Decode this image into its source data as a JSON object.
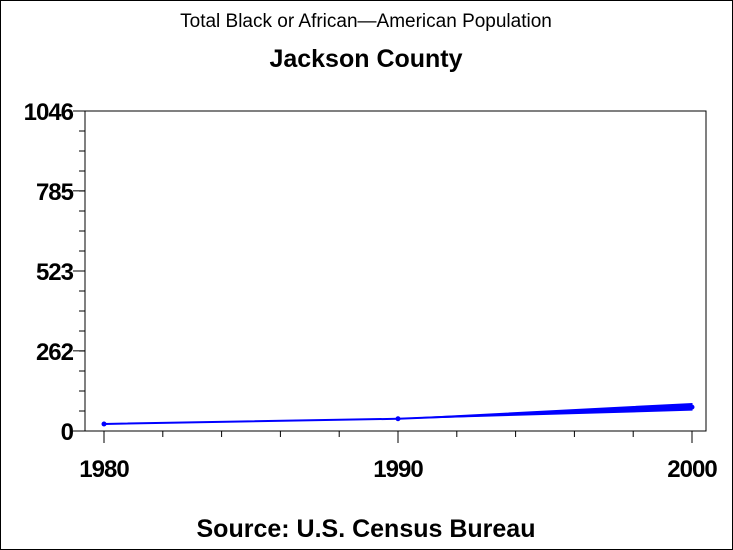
{
  "chart_data": {
    "type": "line",
    "title": "Total Black or African—American Population",
    "subtitle": "Jackson County",
    "source": "Source: U.S. Census Bureau",
    "xlim": [
      1980,
      2000
    ],
    "ylim": [
      0,
      1046
    ],
    "x_ticks": [
      1980,
      1990,
      2000
    ],
    "y_ticks": [
      0,
      262,
      523,
      785,
      1046
    ],
    "x_minor_step": 2,
    "y_minor_step": 65.375,
    "grid": false,
    "line_color": "#0000ff",
    "series": [
      {
        "x": [
          1980,
          1990,
          2000
        ],
        "values": [
          23,
          40,
          78
        ],
        "band_low": [
          23,
          40,
          68
        ],
        "band_high": [
          23,
          40,
          90
        ]
      }
    ]
  }
}
